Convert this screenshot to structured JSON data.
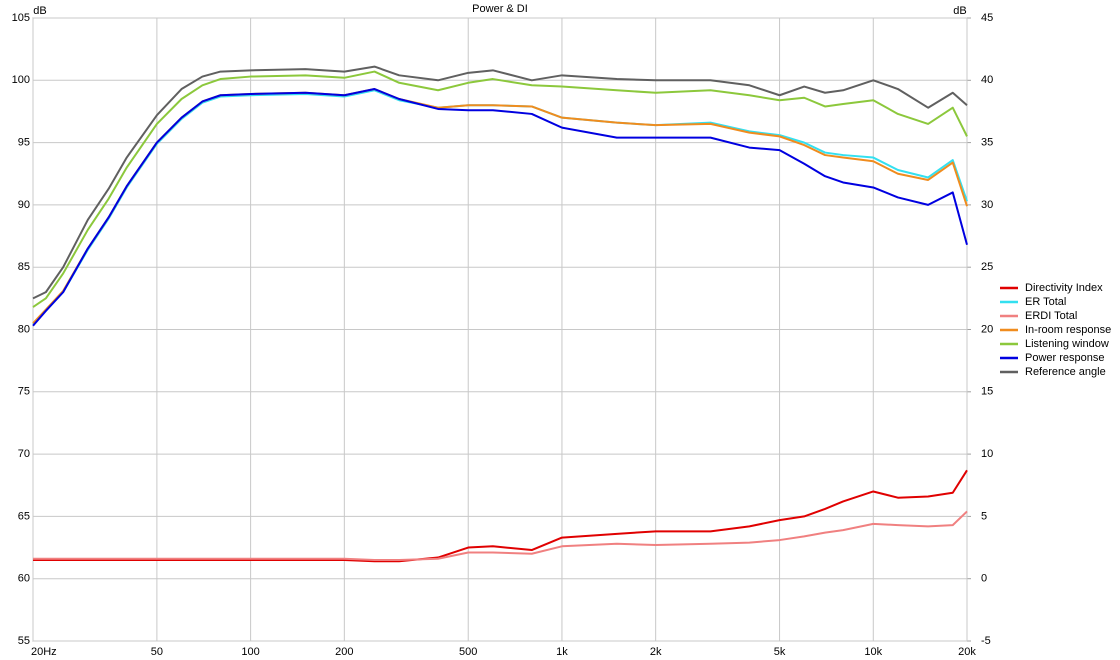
{
  "chart_data": {
    "type": "line",
    "title": "Power & DI",
    "y_label": "dB",
    "y2_label": "dB",
    "log_x": true,
    "grid": true,
    "legend": "right",
    "x": [
      20,
      22,
      25,
      30,
      35,
      40,
      50,
      60,
      70,
      80,
      100,
      150,
      200,
      250,
      300,
      400,
      500,
      600,
      800,
      1000,
      1500,
      2000,
      3000,
      4000,
      5000,
      6000,
      7000,
      8000,
      10000,
      12000,
      15000,
      18000,
      20000
    ],
    "xlim": [
      20,
      20000
    ],
    "xticks": [
      {
        "value": 20,
        "label": "20Hz"
      },
      50,
      100,
      200,
      500,
      {
        "value": 1000,
        "label": "1k"
      },
      {
        "value": 2000,
        "label": "2k"
      },
      {
        "value": 5000,
        "label": "5k"
      },
      {
        "value": 10000,
        "label": "10k"
      },
      {
        "value": 20000,
        "label": "20k"
      }
    ],
    "ylim": [
      55,
      105
    ],
    "yticks": [
      55,
      60,
      65,
      70,
      75,
      80,
      85,
      90,
      95,
      100,
      105
    ],
    "y2lim": [
      -5,
      45
    ],
    "y2ticks": [
      -5,
      0,
      5,
      10,
      15,
      20,
      25,
      30,
      35,
      40,
      45
    ],
    "series": [
      {
        "name": "Directivity Index",
        "color": "#e00000",
        "axis": "y2",
        "values": [
          1.5,
          1.5,
          1.5,
          1.5,
          1.5,
          1.5,
          1.5,
          1.5,
          1.5,
          1.5,
          1.5,
          1.5,
          1.5,
          1.4,
          1.4,
          1.7,
          2.5,
          2.6,
          2.3,
          3.3,
          3.6,
          3.8,
          3.8,
          4.2,
          4.7,
          5,
          5.6,
          6.2,
          7,
          6.5,
          6.6,
          6.9,
          8.7
        ]
      },
      {
        "name": "ER Total",
        "color": "#33e0f0",
        "values": [
          80.4,
          81.5,
          83,
          86.4,
          88.9,
          91.4,
          94.9,
          96.9,
          98.2,
          98.7,
          98.8,
          98.9,
          98.7,
          99.2,
          98.4,
          97.8,
          98,
          98,
          97.9,
          97,
          96.6,
          96.4,
          96.6,
          95.9,
          95.6,
          95,
          94.2,
          94,
          93.8,
          92.8,
          92.2,
          93.6,
          90.3
        ]
      },
      {
        "name": "ERDI Total",
        "color": "#f08080",
        "axis": "y2",
        "values": [
          1.6,
          1.6,
          1.6,
          1.6,
          1.6,
          1.6,
          1.6,
          1.6,
          1.6,
          1.6,
          1.6,
          1.6,
          1.6,
          1.5,
          1.5,
          1.6,
          2.1,
          2.1,
          2.0,
          2.6,
          2.8,
          2.7,
          2.8,
          2.9,
          3.1,
          3.4,
          3.7,
          3.9,
          4.4,
          4.3,
          4.2,
          4.3,
          5.4
        ]
      },
      {
        "name": "In-room response",
        "color": "#f08c1e",
        "values": [
          80.5,
          81.6,
          83.1,
          86.5,
          89,
          91.5,
          95,
          97,
          98.3,
          98.8,
          98.9,
          99,
          98.8,
          99.3,
          98.5,
          97.8,
          98,
          98,
          97.9,
          97,
          96.6,
          96.4,
          96.5,
          95.8,
          95.5,
          94.8,
          94,
          93.8,
          93.5,
          92.5,
          92,
          93.4,
          89.9
        ]
      },
      {
        "name": "Listening window",
        "color": "#8cc83c",
        "values": [
          81.8,
          82.5,
          84.5,
          88,
          90.5,
          93,
          96.5,
          98.5,
          99.6,
          100.1,
          100.3,
          100.4,
          100.2,
          100.7,
          99.8,
          99.2,
          99.8,
          100.1,
          99.6,
          99.5,
          99.2,
          99,
          99.2,
          98.8,
          98.4,
          98.6,
          97.9,
          98.1,
          98.4,
          97.3,
          96.5,
          97.8,
          95.5
        ]
      },
      {
        "name": "Power response",
        "color": "#0000e0",
        "values": [
          80.3,
          81.5,
          83,
          86.5,
          89,
          91.5,
          95,
          97,
          98.3,
          98.8,
          98.9,
          99,
          98.8,
          99.3,
          98.5,
          97.7,
          97.6,
          97.6,
          97.3,
          96.2,
          95.4,
          95.4,
          95.4,
          94.6,
          94.4,
          93.3,
          92.3,
          91.8,
          91.4,
          90.6,
          90,
          91,
          86.8
        ]
      },
      {
        "name": "Reference angle",
        "color": "#606060",
        "values": [
          82.5,
          83,
          85,
          88.8,
          91.3,
          93.8,
          97.2,
          99.3,
          100.3,
          100.7,
          100.8,
          100.9,
          100.7,
          101.1,
          100.4,
          100,
          100.6,
          100.8,
          100,
          100.4,
          100.1,
          100,
          100,
          99.6,
          98.8,
          99.5,
          99,
          99.2,
          100,
          99.3,
          97.8,
          99,
          98
        ]
      }
    ]
  }
}
